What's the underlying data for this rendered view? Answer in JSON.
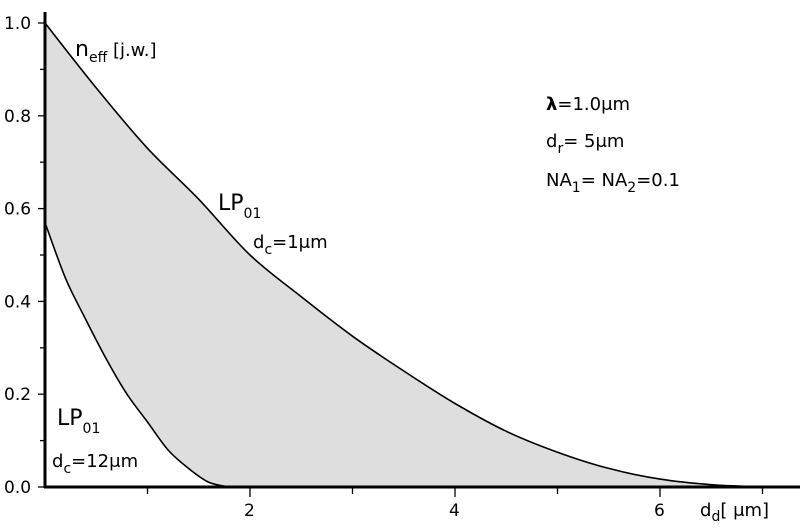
{
  "chart_data": {
    "type": "area",
    "title": "",
    "xlim": [
      0,
      7.4
    ],
    "ylim": [
      0,
      1.0
    ],
    "x_ticks": [
      2,
      4,
      6
    ],
    "x_minor_ticks": [
      1,
      3,
      5,
      7
    ],
    "y_ticks": [
      0.0,
      0.2,
      0.4,
      0.6,
      0.8,
      1.0
    ],
    "x_tick_labels": [
      "2",
      "4",
      "6"
    ],
    "y_tick_labels": [
      "0.0",
      "0.2",
      "0.4",
      "0.6",
      "0.8",
      "1.0"
    ],
    "grid": false,
    "ylabel_parts": {
      "main": "n",
      "sub": "eff",
      "rest": " [j.w.]"
    },
    "xlabel_parts": {
      "main": "d",
      "sub": "d",
      "rest": "[ μm]"
    },
    "series": [
      {
        "label_main": "LP",
        "label_sub": "01",
        "param_main": "d",
        "param_sub": "c",
        "param_rest": "=1μm",
        "x": [
          0,
          0.5,
          1.0,
          1.5,
          2.0,
          2.5,
          3.0,
          3.5,
          4.0,
          4.5,
          5.0,
          5.5,
          6.0,
          6.5,
          7.0
        ],
        "y": [
          1.0,
          0.86,
          0.73,
          0.62,
          0.5,
          0.41,
          0.325,
          0.25,
          0.18,
          0.12,
          0.075,
          0.04,
          0.017,
          0.005,
          0.0
        ]
      },
      {
        "label_main": "LP",
        "label_sub": "01",
        "param_main": "d",
        "param_sub": "c",
        "param_rest": "=12μm",
        "x": [
          0,
          0.2,
          0.4,
          0.6,
          0.8,
          1.0,
          1.2,
          1.4,
          1.6,
          1.8
        ],
        "y": [
          0.57,
          0.45,
          0.36,
          0.275,
          0.2,
          0.14,
          0.08,
          0.04,
          0.01,
          0.0
        ]
      }
    ],
    "parameters": [
      {
        "main": "λ",
        "sub": "",
        "rest": "=1.0μm"
      },
      {
        "main": "d",
        "sub": "r",
        "rest": "= 5μm"
      },
      {
        "main": "NA",
        "sub": "1",
        "rest": "= NA",
        "sub2": "2",
        "rest2": "=0.1"
      }
    ]
  }
}
